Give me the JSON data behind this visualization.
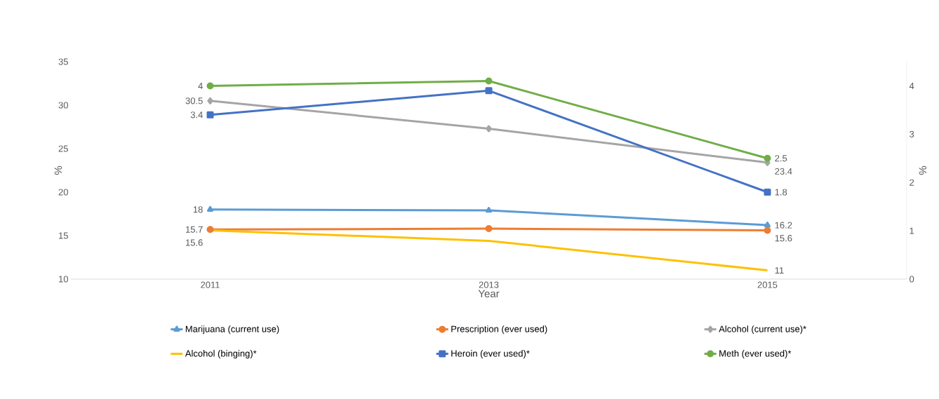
{
  "chart_data": {
    "type": "line",
    "xlabel": "Year",
    "ylabel": "%",
    "y2label": "%",
    "categories": [
      "2011",
      "2013",
      "2015"
    ],
    "ylim": [
      10,
      35
    ],
    "yticks": [
      10,
      15,
      20,
      25,
      30,
      35
    ],
    "y2lim": [
      0,
      4.5
    ],
    "y2ticks": [
      0,
      1,
      2,
      3,
      4
    ],
    "legend": "bottom",
    "grid": false,
    "series": [
      {
        "name": "Marijuana (current use)",
        "color": "#5b9bd5",
        "marker": "triangle",
        "values": [
          18,
          17.9,
          16.2
        ],
        "value_labels": [
          "18",
          null,
          "16.2"
        ]
      },
      {
        "name": "Prescription (ever used)",
        "color": "#ed7d31",
        "marker": "circle",
        "values": [
          15.7,
          15.8,
          15.6
        ],
        "value_labels": [
          "15.7",
          null,
          "15.6"
        ]
      },
      {
        "name": "Alcohol (current use)*",
        "color": "#a5a5a5",
        "marker": "diamond",
        "values": [
          30.5,
          27.3,
          23.4
        ],
        "value_labels": [
          "30.5",
          null,
          "23.4"
        ]
      },
      {
        "name": "Alcohol (binging)*",
        "color": "#ffc000",
        "marker": "none",
        "values": [
          15.6,
          14.4,
          11
        ],
        "value_labels": [
          "15.6",
          null,
          "11"
        ]
      },
      {
        "name": "Heroin (ever used)*",
        "color": "#4472c4",
        "marker": "square",
        "axis": "y2",
        "values": [
          3.4,
          3.9,
          1.8
        ],
        "value_labels": [
          "3.4",
          null,
          "1.8"
        ]
      },
      {
        "name": "Meth (ever used)*",
        "color": "#70ad47",
        "marker": "circle",
        "axis": "y2",
        "values": [
          4,
          4.1,
          2.5
        ],
        "value_labels": [
          "4",
          null,
          "2.5"
        ]
      }
    ]
  }
}
